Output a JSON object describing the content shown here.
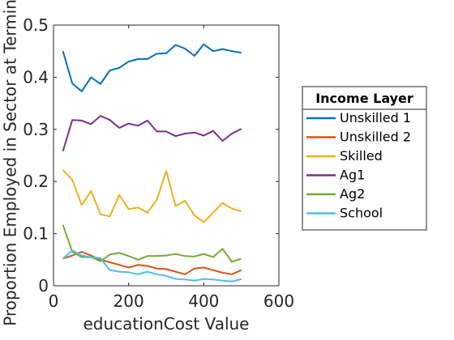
{
  "chart_data": {
    "type": "line",
    "xlabel": "educationCost Value",
    "ylabel": "Proportion Employed in Sector at Terminal",
    "xlim": [
      0,
      600
    ],
    "ylim": [
      0,
      0.5
    ],
    "xticks": [
      0,
      200,
      400,
      600
    ],
    "xtick_labels": [
      "0",
      "200",
      "400",
      "600"
    ],
    "yticks": [
      0,
      0.1,
      0.2,
      0.3,
      0.4,
      0.5
    ],
    "ytick_labels": [
      "0",
      "0.1",
      "0.2",
      "0.3",
      "0.4",
      "0.5"
    ],
    "grid": false,
    "legend": {
      "title": "Income Layer",
      "placement": "outside-right"
    },
    "x": [
      25,
      50,
      75,
      100,
      125,
      150,
      175,
      200,
      225,
      250,
      275,
      300,
      325,
      350,
      375,
      400,
      425,
      450,
      475,
      500
    ],
    "series": [
      {
        "name": "Unskilled 1",
        "color": "#0072BD",
        "values": [
          0.45,
          0.388,
          0.373,
          0.4,
          0.387,
          0.413,
          0.418,
          0.43,
          0.435,
          0.435,
          0.445,
          0.446,
          0.462,
          0.455,
          0.441,
          0.463,
          0.45,
          0.454,
          0.45,
          0.447
        ]
      },
      {
        "name": "Unskilled 2",
        "color": "#D95319",
        "values": [
          0.052,
          0.058,
          0.065,
          0.058,
          0.05,
          0.045,
          0.04,
          0.035,
          0.04,
          0.038,
          0.033,
          0.032,
          0.027,
          0.022,
          0.033,
          0.035,
          0.03,
          0.025,
          0.022,
          0.03
        ]
      },
      {
        "name": "Skilled",
        "color": "#EDB120",
        "values": [
          0.222,
          0.203,
          0.155,
          0.182,
          0.137,
          0.133,
          0.174,
          0.147,
          0.15,
          0.14,
          0.165,
          0.22,
          0.153,
          0.163,
          0.135,
          0.122,
          0.14,
          0.159,
          0.148,
          0.143
        ]
      },
      {
        "name": "Ag1",
        "color": "#7E2F8E",
        "values": [
          0.258,
          0.318,
          0.317,
          0.31,
          0.326,
          0.318,
          0.303,
          0.311,
          0.307,
          0.317,
          0.296,
          0.296,
          0.287,
          0.292,
          0.294,
          0.288,
          0.297,
          0.278,
          0.292,
          0.301
        ]
      },
      {
        "name": "Ag2",
        "color": "#77AC30",
        "values": [
          0.117,
          0.065,
          0.055,
          0.055,
          0.047,
          0.06,
          0.063,
          0.057,
          0.05,
          0.057,
          0.057,
          0.058,
          0.061,
          0.057,
          0.056,
          0.061,
          0.055,
          0.071,
          0.046,
          0.052
        ]
      },
      {
        "name": "School",
        "color": "#4DBEEE",
        "values": [
          0.052,
          0.068,
          0.058,
          0.055,
          0.053,
          0.03,
          0.027,
          0.026,
          0.022,
          0.027,
          0.022,
          0.019,
          0.013,
          0.012,
          0.01,
          0.013,
          0.012,
          0.01,
          0.008,
          0.013
        ]
      }
    ]
  }
}
